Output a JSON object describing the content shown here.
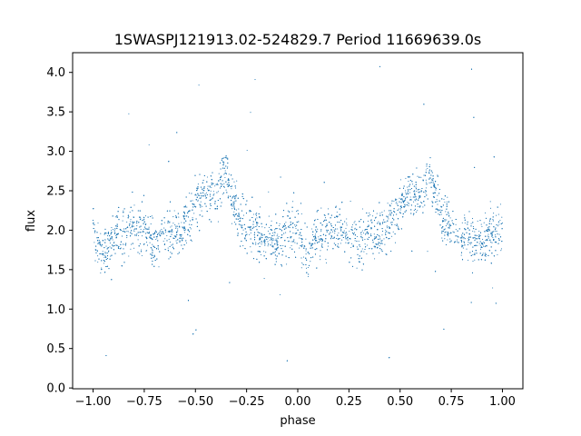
{
  "chart_data": {
    "type": "scatter",
    "title": "1SWASPJ121913.02-524829.7 Period 11669639.0s",
    "xlabel": "phase",
    "ylabel": "flux",
    "xlim": [
      -1.1,
      1.1
    ],
    "ylim": [
      -0.01,
      4.25
    ],
    "xticks": [
      -1.0,
      -0.75,
      -0.5,
      -0.25,
      0.0,
      0.25,
      0.5,
      0.75,
      1.0
    ],
    "xtick_labels": [
      "−1.00",
      "−0.75",
      "−0.50",
      "−0.25",
      "0.00",
      "0.25",
      "0.50",
      "0.75",
      "1.00"
    ],
    "yticks": [
      0.0,
      0.5,
      1.0,
      1.5,
      2.0,
      2.5,
      3.0,
      3.5,
      4.0
    ],
    "ytick_labels": [
      "0.0",
      "0.5",
      "1.0",
      "1.5",
      "2.0",
      "2.5",
      "3.0",
      "3.5",
      "4.0"
    ],
    "grid": false,
    "marker_color": "#1f77b4",
    "series": [
      {
        "x": [
          -1.0,
          -0.95,
          -0.9,
          -0.85,
          -0.8,
          -0.75,
          -0.7,
          -0.65,
          -0.6,
          -0.55,
          -0.5,
          -0.45,
          -0.4,
          -0.35,
          -0.3,
          -0.25,
          -0.2,
          -0.15,
          -0.1,
          -0.05,
          0.0,
          0.05,
          0.1,
          0.15,
          0.2,
          0.25,
          0.3,
          0.35,
          0.4,
          0.45,
          0.5,
          0.55,
          0.6,
          0.65,
          0.7,
          0.75,
          0.8,
          0.85,
          0.9,
          0.95,
          1.0
        ],
        "y": [
          2.0,
          1.7,
          1.95,
          1.95,
          2.05,
          2.0,
          1.8,
          2.0,
          1.95,
          2.05,
          2.3,
          2.5,
          2.45,
          2.7,
          2.2,
          2.05,
          1.95,
          1.9,
          1.85,
          2.0,
          2.0,
          1.7,
          1.95,
          1.95,
          2.05,
          2.0,
          1.8,
          2.0,
          1.95,
          2.05,
          2.3,
          2.5,
          2.45,
          2.7,
          2.2,
          2.05,
          1.95,
          1.9,
          1.85,
          2.0,
          2.0
        ]
      }
    ]
  }
}
